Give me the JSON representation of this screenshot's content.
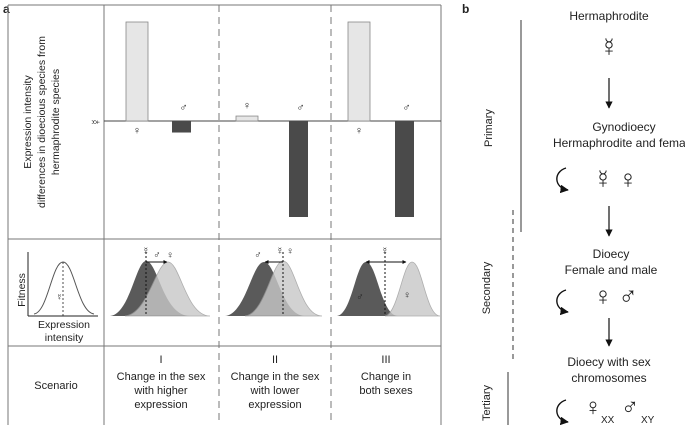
{
  "panel_a": {
    "label": "a",
    "ylabel_line1": "Expression intensity",
    "ylabel_line2": "differences in dioecious species from",
    "ylabel_line3": "hermaphrodite species",
    "herm_symbol": "☿",
    "female_symbol": "♀",
    "male_symbol": "♂",
    "fitness_label": "Fitness",
    "expr_label_line1": "Expression",
    "expr_label_line2": "intensity",
    "scenario_label": "Scenario",
    "scenarios": [
      {
        "numeral": "I",
        "line1": "Change in the sex",
        "line2": "with higher",
        "line3": "expression"
      },
      {
        "numeral": "II",
        "line1": "Change in the sex",
        "line2": "with lower",
        "line3": "expression"
      },
      {
        "numeral": "III",
        "line1": "Change in",
        "line2": "both sexes",
        "line3": ""
      }
    ],
    "bars": [
      {
        "scenario": "I",
        "female": 1.0,
        "male": -0.12
      },
      {
        "scenario": "II",
        "female": 0.05,
        "male": -1.0
      },
      {
        "scenario": "III",
        "female": 1.0,
        "male": -1.0
      }
    ],
    "colors": {
      "female_bar": "#e6e6e6",
      "male_bar": "#4a4a4a",
      "grid": "#777777"
    }
  },
  "panel_b": {
    "label": "b",
    "stage1": "Hermaphrodite",
    "stage2_line1": "Gynodioecy",
    "stage2_line2": "Hermaphrodite and female",
    "stage3_line1": "Dioecy",
    "stage3_line2": "Female and male",
    "stage4_line1": "Dioecy with sex",
    "stage4_line2": "chromosomes",
    "xx": "XX",
    "xy": "XY",
    "primary": "Primary",
    "secondary": "Secondary",
    "tertiary": "Tertiary"
  }
}
